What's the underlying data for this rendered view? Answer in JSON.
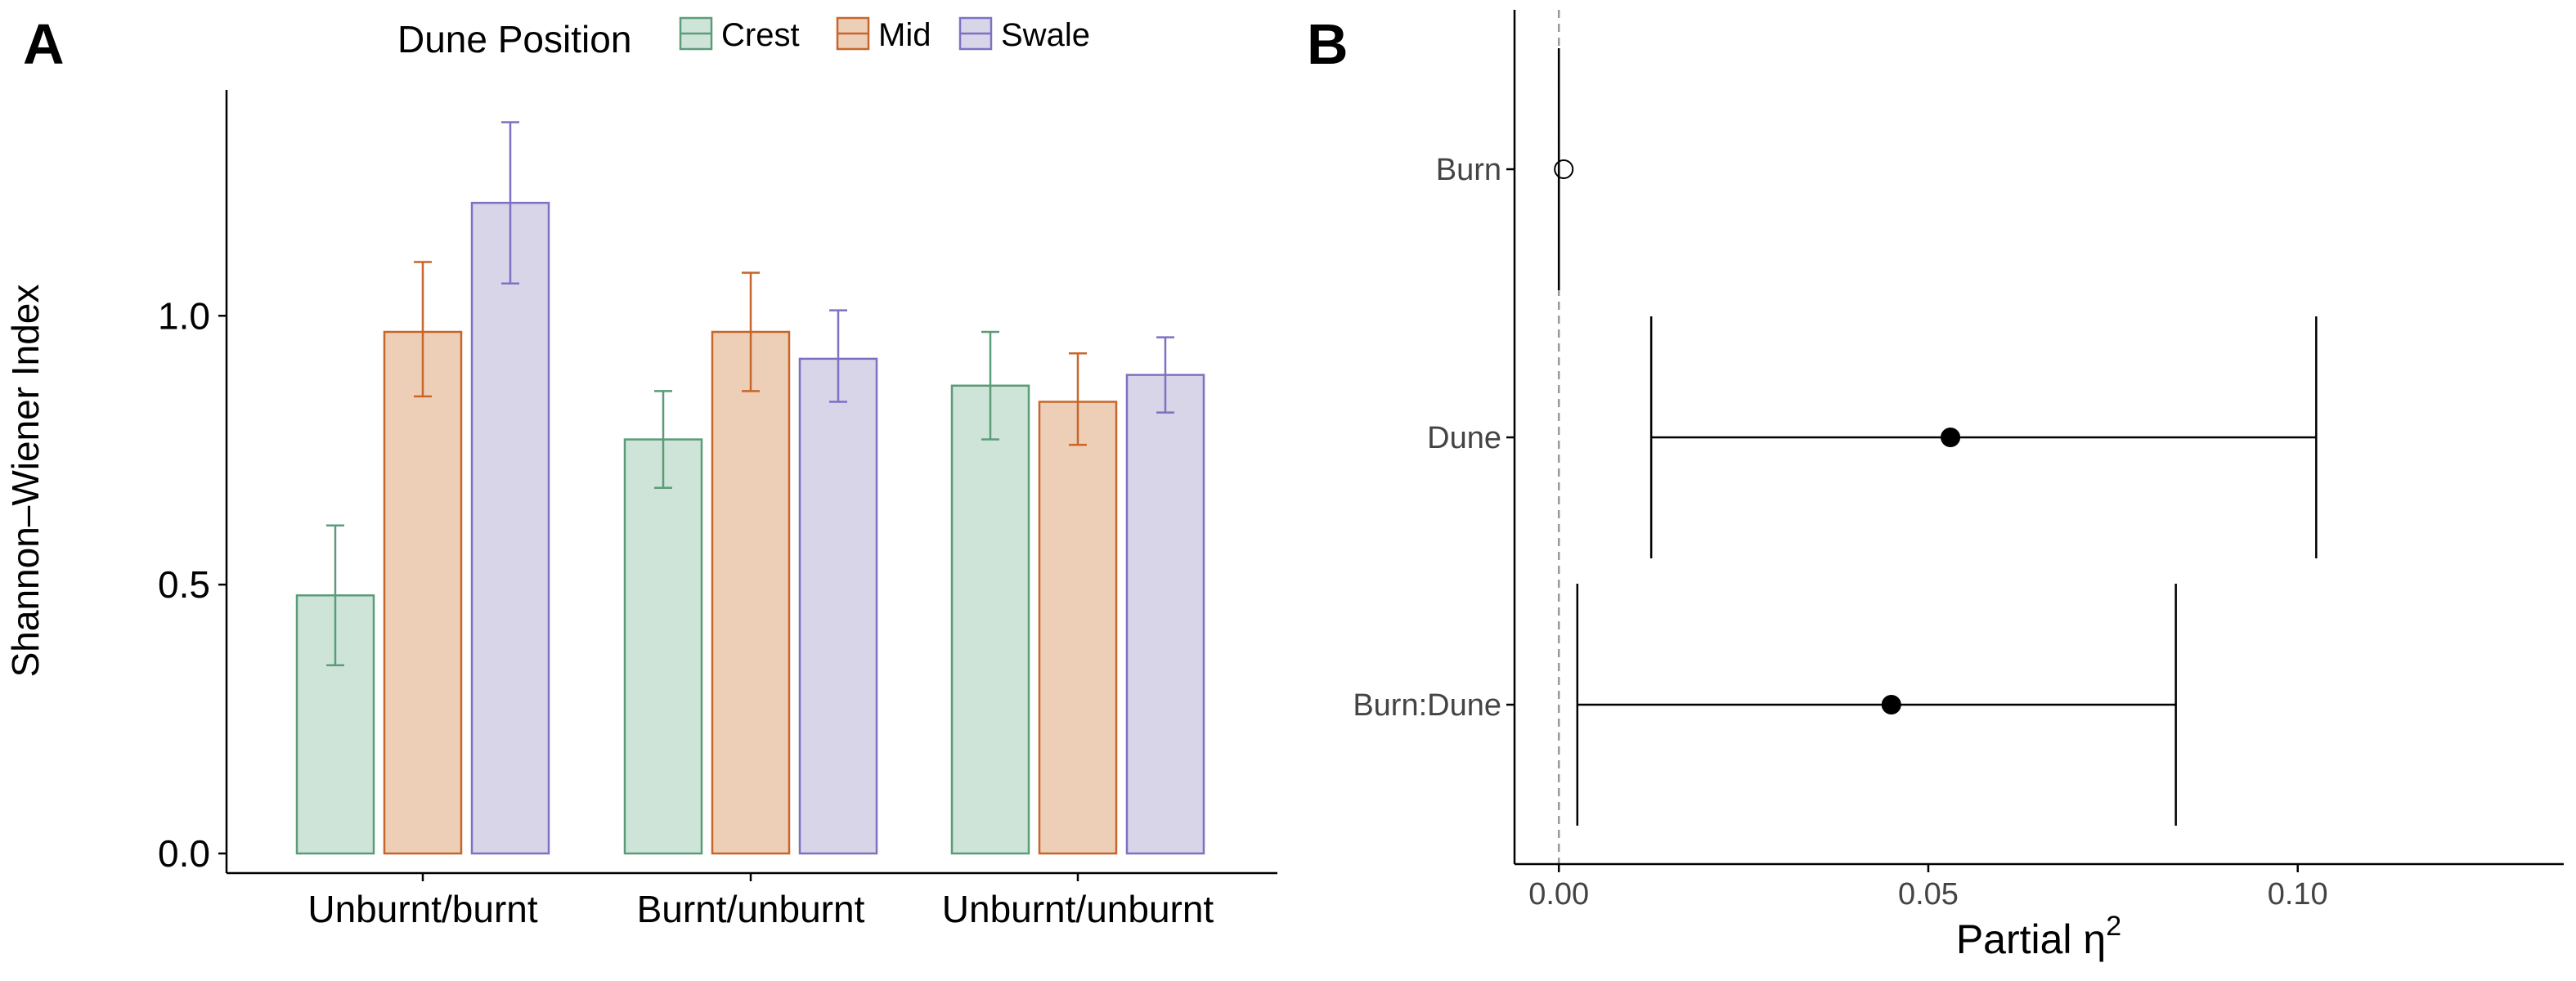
{
  "panels": {
    "a": {
      "tag": "A"
    },
    "b": {
      "tag": "B"
    }
  },
  "chart_data": [
    {
      "type": "bar",
      "panel": "A",
      "title": "",
      "xlabel": "",
      "ylabel": "Shannon–Wiener Index",
      "ylim": [
        0,
        1.42
      ],
      "yticks": [
        0.0,
        0.5,
        1.0
      ],
      "ytick_labels": [
        "0.0",
        "0.5",
        "1.0"
      ],
      "grid": false,
      "legend": {
        "title": "Dune Position",
        "placement": "top"
      },
      "categories": [
        "Unburnt/burnt",
        "Burnt/unburnt",
        "Unburnt/unburnt"
      ],
      "series": [
        {
          "name": "Crest",
          "values": [
            0.48,
            0.77,
            0.87
          ],
          "err_low": [
            0.35,
            0.68,
            0.77
          ],
          "err_high": [
            0.61,
            0.86,
            0.97
          ],
          "fill": "#cfe4d9",
          "stroke": "#5a9c78"
        },
        {
          "name": "Mid",
          "values": [
            0.97,
            0.97,
            0.84
          ],
          "err_low": [
            0.85,
            0.86,
            0.76
          ],
          "err_high": [
            1.1,
            1.08,
            0.93
          ],
          "fill": "#edcfb8",
          "stroke": "#c8652a"
        },
        {
          "name": "Swale",
          "values": [
            1.21,
            0.92,
            0.89
          ],
          "err_low": [
            1.06,
            0.84,
            0.82
          ],
          "err_high": [
            1.36,
            1.01,
            0.96
          ],
          "fill": "#d8d5e8",
          "stroke": "#7b72c2"
        }
      ]
    },
    {
      "type": "scatter",
      "subtype": "forest",
      "panel": "B",
      "title": "",
      "xlabel_main": "Partial η",
      "xlabel_sup": "2",
      "ylabel": "",
      "xlim": [
        -0.006,
        0.136
      ],
      "xticks": [
        0.0,
        0.05,
        0.1
      ],
      "xtick_labels": [
        "0.00",
        "0.05",
        "0.10"
      ],
      "grid": false,
      "reference_line": 0,
      "terms": [
        {
          "label": "Burn",
          "estimate": 0.0,
          "lower": 0.0,
          "upper": 0.0,
          "open_marker": true
        },
        {
          "label": "Dune",
          "estimate": 0.053,
          "lower": 0.0125,
          "upper": 0.1025,
          "open_marker": false
        },
        {
          "label": "Burn:Dune",
          "estimate": 0.045,
          "lower": 0.0025,
          "upper": 0.0835,
          "open_marker": false
        }
      ]
    }
  ]
}
